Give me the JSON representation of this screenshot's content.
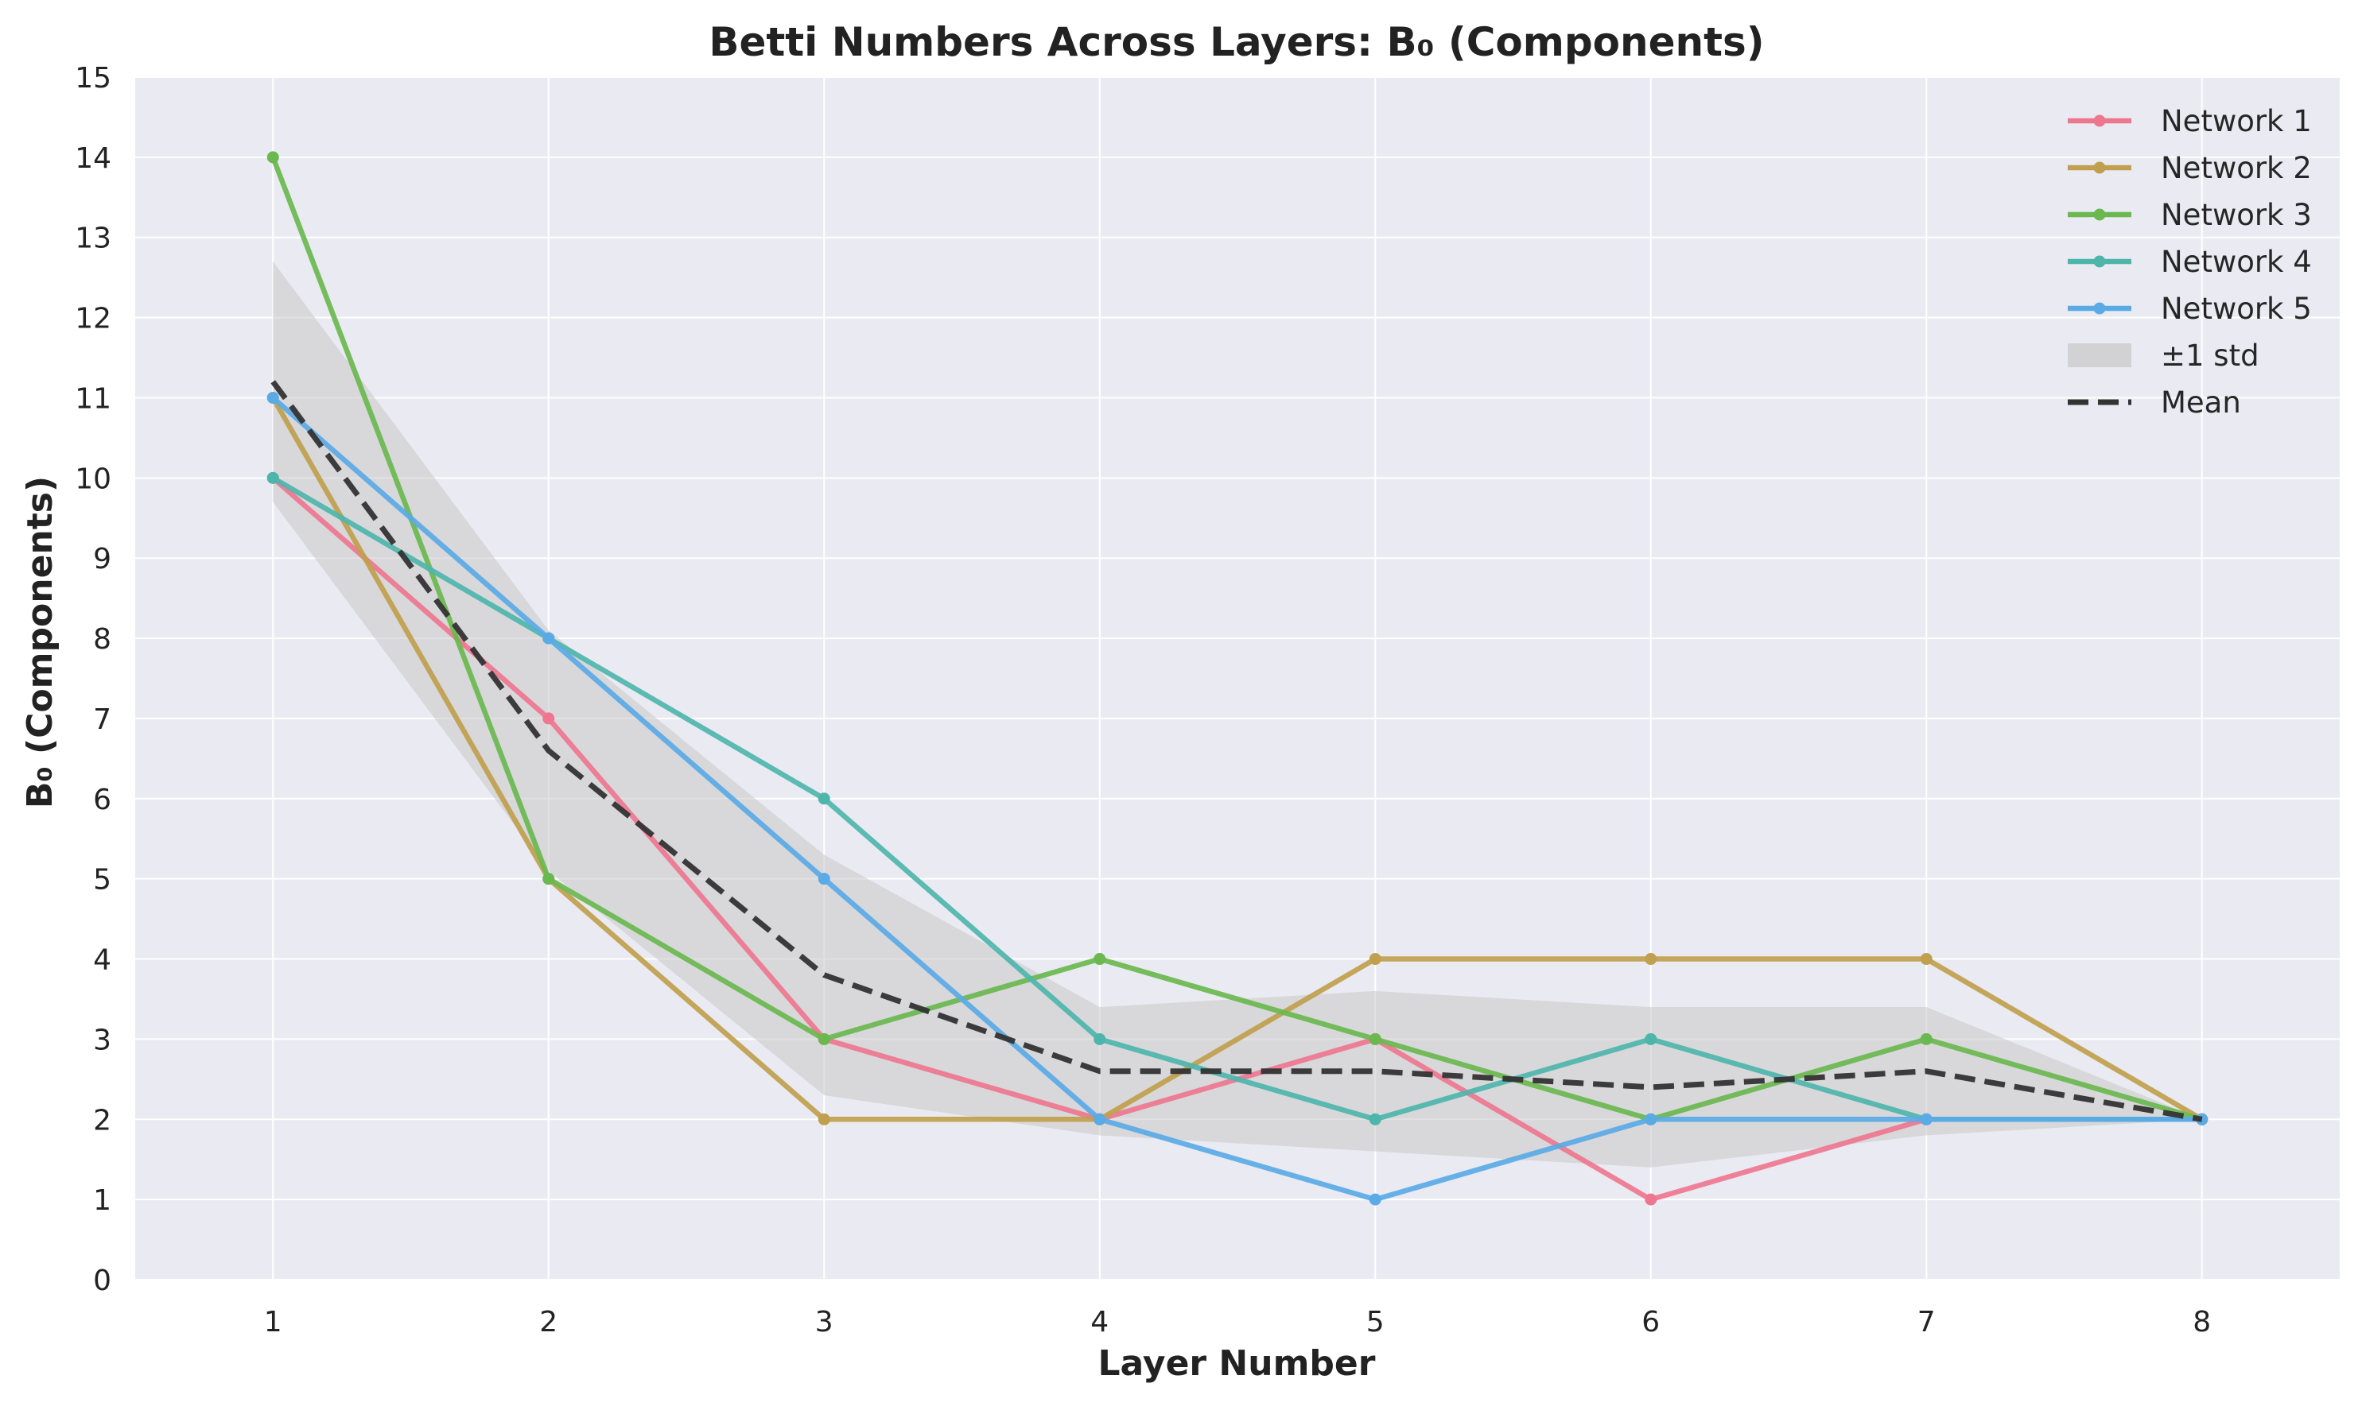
{
  "chart_data": {
    "type": "line",
    "title": "Betti Numbers Across Layers: B₀ (Components)",
    "xlabel": "Layer Number",
    "ylabel": "B₀ (Components)",
    "x": [
      1,
      2,
      3,
      4,
      5,
      6,
      7,
      8
    ],
    "xlim": [
      0.5,
      8.5
    ],
    "ylim": [
      0,
      15
    ],
    "xticks": [
      "1",
      "2",
      "3",
      "4",
      "5",
      "6",
      "7",
      "8"
    ],
    "yticks": [
      "0",
      "1",
      "2",
      "3",
      "4",
      "5",
      "6",
      "7",
      "8",
      "9",
      "10",
      "11",
      "12",
      "13",
      "14",
      "15"
    ],
    "grid": true,
    "legend_position": "top-right",
    "series": [
      {
        "name": "Network 1",
        "color": "#ee7790",
        "values": [
          10,
          7,
          3,
          2,
          3,
          1,
          2,
          2
        ]
      },
      {
        "name": "Network 2",
        "color": "#c0a04e",
        "values": [
          11,
          5,
          2,
          2,
          4,
          4,
          4,
          2
        ]
      },
      {
        "name": "Network 3",
        "color": "#6ab84f",
        "values": [
          14,
          5,
          3,
          4,
          3,
          2,
          3,
          2
        ]
      },
      {
        "name": "Network 4",
        "color": "#4eb5ab",
        "values": [
          10,
          8,
          6,
          3,
          2,
          3,
          2,
          2
        ]
      },
      {
        "name": "Network 5",
        "color": "#5aaae6",
        "values": [
          11,
          8,
          5,
          2,
          1,
          2,
          2,
          2
        ]
      }
    ],
    "mean": {
      "name": "Mean",
      "color": "#333333",
      "values": [
        11.2,
        6.6,
        3.8,
        2.6,
        2.6,
        2.4,
        2.6,
        2.0
      ]
    },
    "std_band": {
      "name": "±1 std",
      "color": "#c8c8c8",
      "lower": [
        9.7,
        5.1,
        2.3,
        1.8,
        1.6,
        1.4,
        1.8,
        2.0
      ],
      "upper": [
        12.7,
        8.1,
        5.3,
        3.4,
        3.6,
        3.4,
        3.4,
        2.0
      ]
    },
    "plot_background": "#eaeaf2",
    "grid_color": "#ffffff"
  }
}
